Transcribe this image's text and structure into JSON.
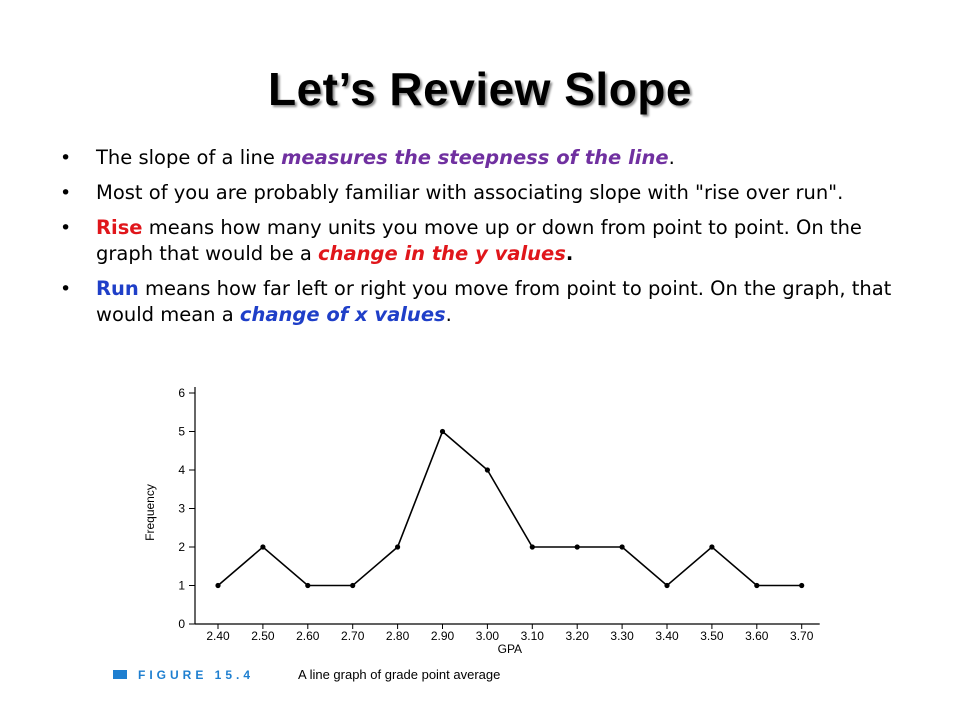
{
  "slide": {
    "title": "Let’s Review Slope",
    "bullets": [
      {
        "parts": [
          {
            "t": "The slope of a line ",
            "c": ""
          },
          {
            "t": "measures the steepness of the line",
            "c": "em purple"
          },
          {
            "t": ".",
            "c": ""
          }
        ]
      },
      {
        "parts": [
          {
            "t": "Most of you are probably familiar with associating slope with \"rise over run\".",
            "c": ""
          }
        ]
      },
      {
        "parts": [
          {
            "t": "Rise",
            "c": "kw red"
          },
          {
            "t": " means how many units you move up or down from point to point.  On the graph that would be a ",
            "c": ""
          },
          {
            "t": "change in the y values",
            "c": "em red"
          },
          {
            "t": ".",
            "c": "kw"
          }
        ]
      },
      {
        "parts": [
          {
            "t": "Run",
            "c": "kw blue"
          },
          {
            "t": " means how far left or right you move from point to point.  On the graph, that would mean a ",
            "c": ""
          },
          {
            "t": "change of x values",
            "c": "em blue"
          },
          {
            "t": ".",
            "c": ""
          }
        ]
      }
    ]
  },
  "chart_data": {
    "type": "line",
    "x": [
      2.4,
      2.5,
      2.6,
      2.7,
      2.8,
      2.9,
      3.0,
      3.1,
      3.2,
      3.3,
      3.4,
      3.5,
      3.6,
      3.7
    ],
    "x_tick_labels": [
      "2.40",
      "2.50",
      "2.60",
      "2.70",
      "2.80",
      "2.90",
      "3.00",
      "3.10",
      "3.20",
      "3.30",
      "3.40",
      "3.50",
      "3.60",
      "3.70"
    ],
    "values": [
      1,
      2,
      1,
      1,
      2,
      5,
      4,
      2,
      2,
      2,
      1,
      2,
      1,
      1
    ],
    "y_ticks": [
      0,
      1,
      2,
      3,
      4,
      5,
      6
    ],
    "ylim": [
      0,
      6
    ],
    "xlabel": "GPA",
    "ylabel": "Frequency",
    "grid": false,
    "caption_label": "FIGURE 15.4",
    "caption": "A line graph of grade point average",
    "colors": {
      "line": "#000000",
      "caption_label": "#1e7fd0"
    }
  }
}
